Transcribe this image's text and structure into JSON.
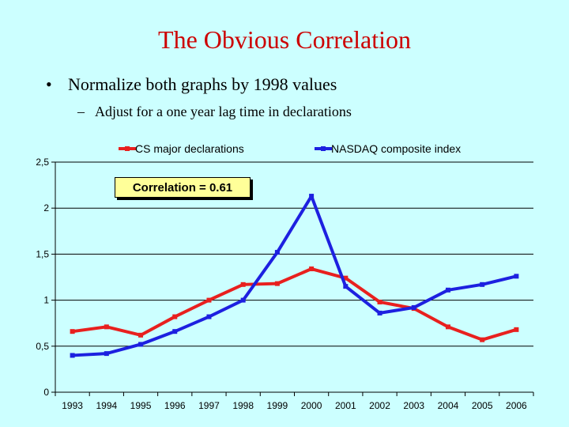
{
  "slide": {
    "title": "The Obvious Correlation",
    "bullet": "Normalize both graphs by 1998 values",
    "bullet_marker": "•",
    "sub_bullet": "Adjust for a one year lag time in declarations",
    "sub_bullet_marker": "–"
  },
  "colors": {
    "background": "#ccffff",
    "title": "#cc0000",
    "series_cs": "#e8201e",
    "series_nasdaq": "#1d20e0",
    "annotation_bg": "#ffff99"
  },
  "chart_data": {
    "type": "line",
    "x": [
      "1993",
      "1994",
      "1995",
      "1996",
      "1997",
      "1998",
      "1999",
      "2000",
      "2001",
      "2002",
      "2003",
      "2004",
      "2005",
      "2006"
    ],
    "series": [
      {
        "name": "CS major declarations",
        "values": [
          0.66,
          0.71,
          0.62,
          0.82,
          1.0,
          1.17,
          1.18,
          1.34,
          1.24,
          0.98,
          0.91,
          0.71,
          0.57,
          0.68
        ]
      },
      {
        "name": "NASDAQ composite index",
        "values": [
          0.4,
          0.42,
          0.52,
          0.66,
          0.82,
          1.0,
          1.52,
          2.13,
          1.15,
          0.86,
          0.92,
          1.11,
          1.17,
          1.26
        ]
      }
    ],
    "ylim": [
      0,
      2.5
    ],
    "yticks": [
      "0",
      "0,5",
      "1",
      "1,5",
      "2",
      "2,5"
    ],
    "ytick_values": [
      0,
      0.5,
      1,
      1.5,
      2,
      2.5
    ],
    "grid": true,
    "legend_position": "top",
    "annotation": "Correlation = 0.61"
  }
}
